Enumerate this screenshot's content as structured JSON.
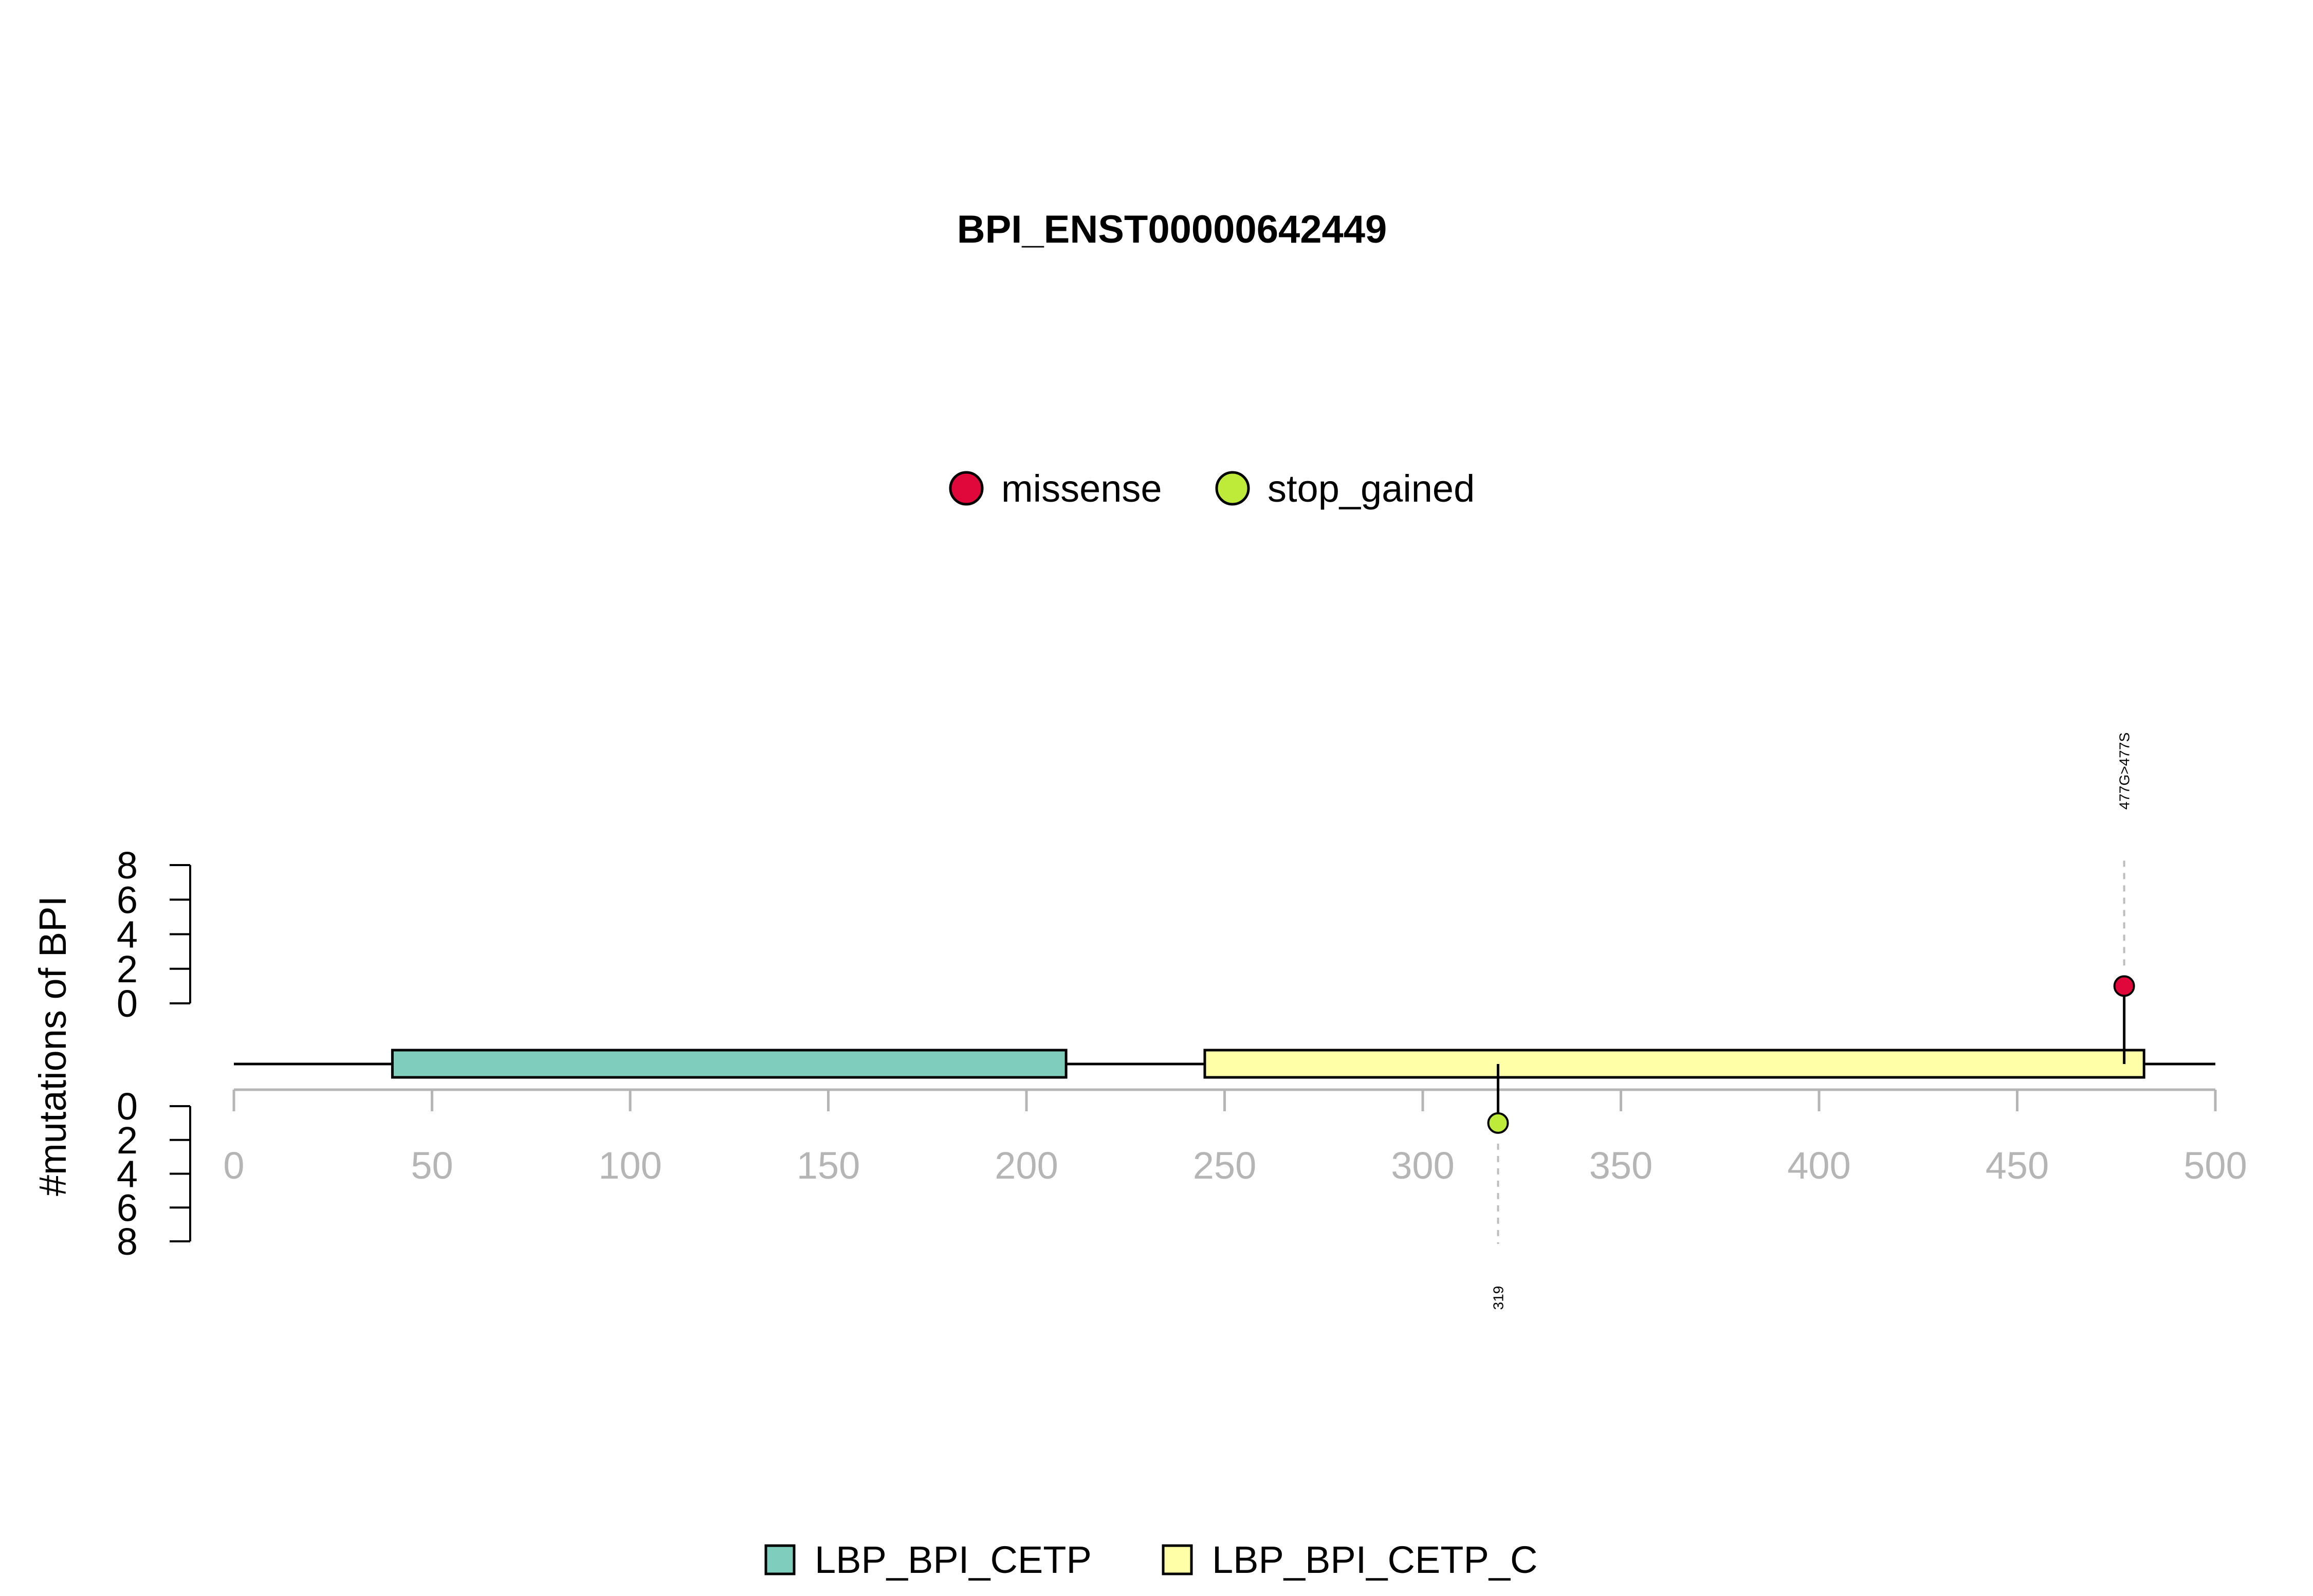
{
  "chart_data": {
    "type": "lollipop",
    "title": "BPI_ENST00000642449",
    "ylabel": "#mutations of BPI",
    "xlim": [
      0,
      500
    ],
    "x_ticks": [
      0,
      50,
      100,
      150,
      200,
      250,
      300,
      350,
      400,
      450,
      500
    ],
    "y_ticks": [
      0,
      2,
      4,
      6,
      8
    ],
    "y_range": [
      0,
      8
    ],
    "mutation_legend": [
      {
        "name": "missense",
        "color": "#E0073A"
      },
      {
        "name": "stop_gained",
        "color": "#BEEA3A"
      }
    ],
    "domain_legend": [
      {
        "name": "LBP_BPI_CETP",
        "color": "#7FCDBB"
      },
      {
        "name": "LBP_BPI_CETP_C",
        "color": "#FFFFA8"
      }
    ],
    "protein_length": 500,
    "domains": [
      {
        "name": "LBP_BPI_CETP",
        "start": 40,
        "end": 210,
        "color": "#7FCDBB"
      },
      {
        "name": "LBP_BPI_CETP_C",
        "start": 245,
        "end": 482,
        "color": "#FFFFA8"
      }
    ],
    "mutations": [
      {
        "position": 477,
        "count": 1,
        "type": "missense",
        "label": "477G>477S",
        "side": "top"
      },
      {
        "position": 319,
        "count": 1,
        "type": "stop_gained",
        "label": "319",
        "side": "bottom"
      }
    ]
  }
}
